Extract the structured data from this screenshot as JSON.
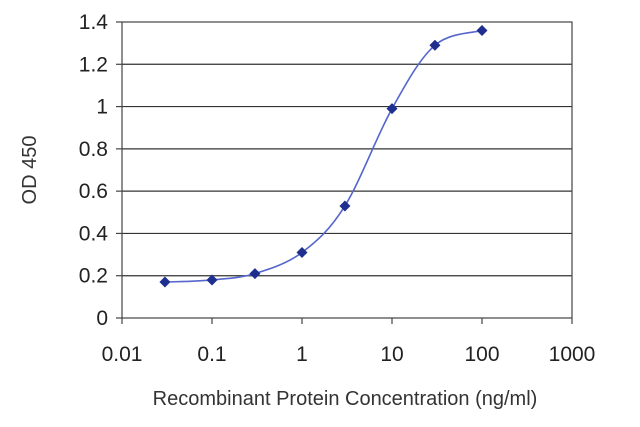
{
  "chart_data": {
    "type": "scatter",
    "xlabel": "Recombinant Protein Concentration (ng/ml)",
    "ylabel": "OD 450",
    "x_scale": "log",
    "xlim": [
      0.01,
      1000
    ],
    "ylim": [
      0,
      1.4
    ],
    "x_ticks": [
      "0.01",
      "0.1",
      "1",
      "10",
      "100",
      "1000"
    ],
    "y_ticks": [
      "0",
      "0.2",
      "0.4",
      "0.6",
      "0.8",
      "1",
      "1.2",
      "1.4"
    ],
    "grid": "horizontal",
    "fit_curve": true,
    "series": [
      {
        "x": [
          0.03,
          0.1,
          0.3,
          1,
          3,
          10,
          30,
          100
        ],
        "y": [
          0.17,
          0.18,
          0.21,
          0.31,
          0.53,
          0.99,
          1.29,
          1.36
        ]
      }
    ],
    "colors": {
      "series": "#1f2f8f",
      "curve": "#5566cc",
      "grid": "#333333"
    }
  }
}
